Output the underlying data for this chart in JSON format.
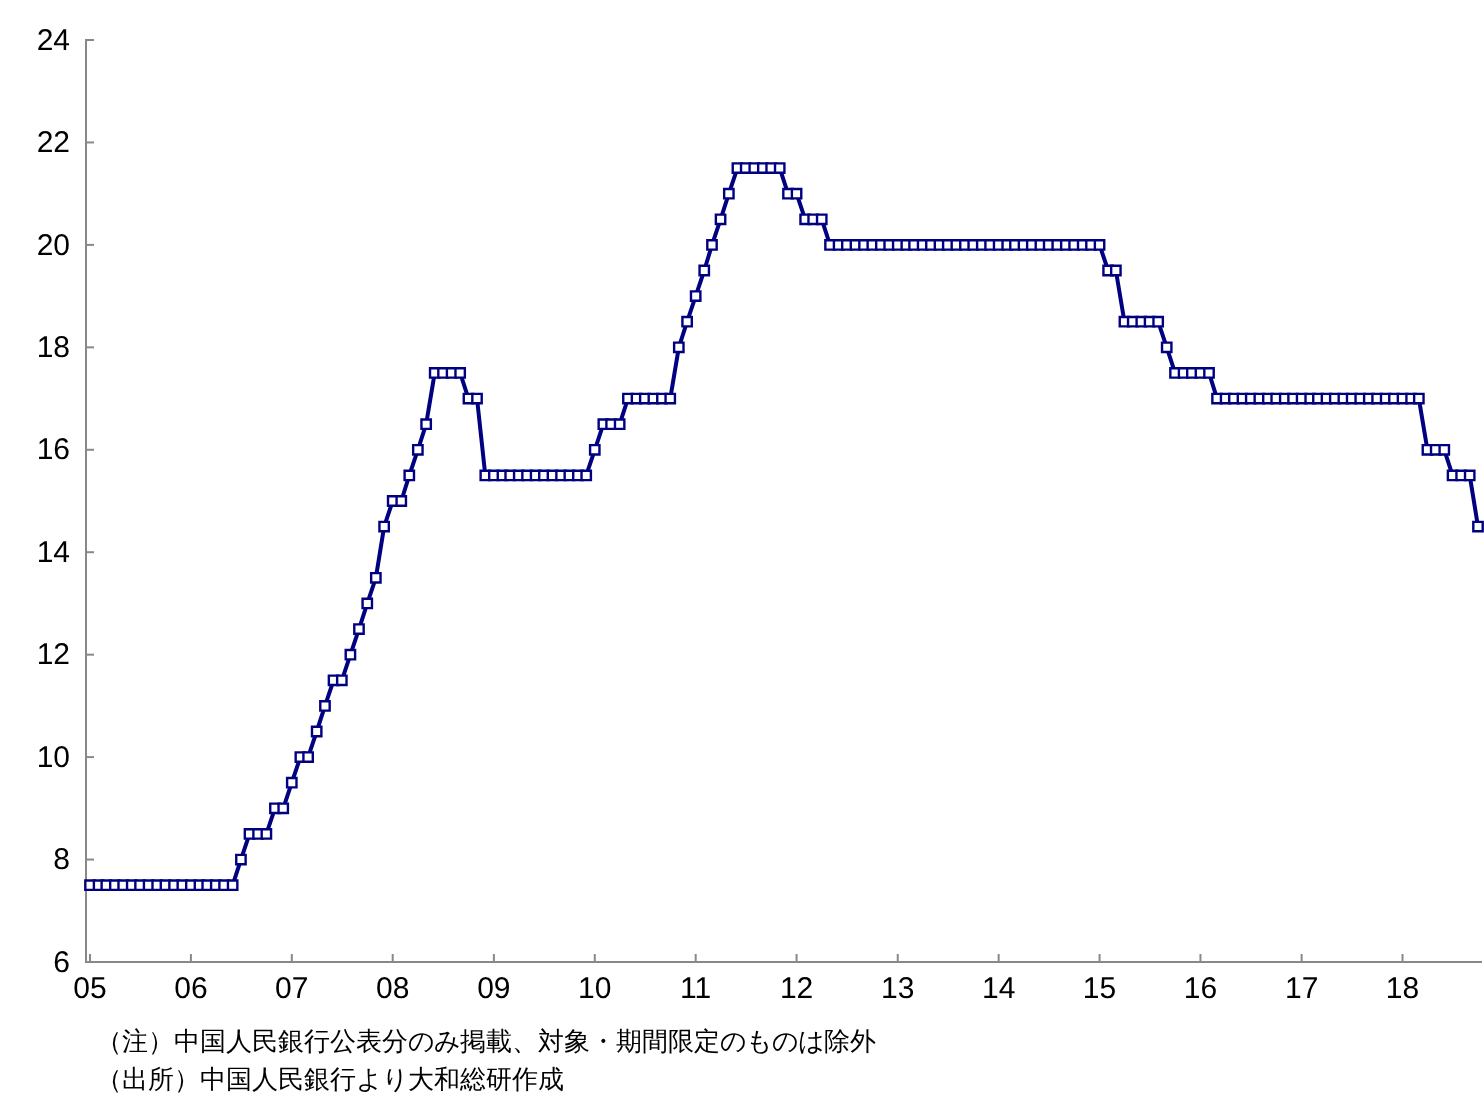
{
  "chart_data": {
    "type": "line",
    "marker": "square",
    "line_style": "solid",
    "grid": false,
    "x": [
      "2005-01",
      "2005-02",
      "2005-03",
      "2005-04",
      "2005-05",
      "2005-06",
      "2005-07",
      "2005-08",
      "2005-09",
      "2005-10",
      "2005-11",
      "2005-12",
      "2006-01",
      "2006-02",
      "2006-03",
      "2006-04",
      "2006-05",
      "2006-06",
      "2006-07",
      "2006-08",
      "2006-09",
      "2006-10",
      "2006-11",
      "2006-12",
      "2007-01",
      "2007-02",
      "2007-03",
      "2007-04",
      "2007-05",
      "2007-06",
      "2007-07",
      "2007-08",
      "2007-09",
      "2007-10",
      "2007-11",
      "2007-12",
      "2008-01",
      "2008-02",
      "2008-03",
      "2008-04",
      "2008-05",
      "2008-06",
      "2008-07",
      "2008-08",
      "2008-09",
      "2008-10",
      "2008-11",
      "2008-12",
      "2009-01",
      "2009-02",
      "2009-03",
      "2009-04",
      "2009-05",
      "2009-06",
      "2009-07",
      "2009-08",
      "2009-09",
      "2009-10",
      "2009-11",
      "2009-12",
      "2010-01",
      "2010-02",
      "2010-03",
      "2010-04",
      "2010-05",
      "2010-06",
      "2010-07",
      "2010-08",
      "2010-09",
      "2010-10",
      "2010-11",
      "2010-12",
      "2011-01",
      "2011-02",
      "2011-03",
      "2011-04",
      "2011-05",
      "2011-06",
      "2011-07",
      "2011-08",
      "2011-09",
      "2011-10",
      "2011-11",
      "2011-12",
      "2012-01",
      "2012-02",
      "2012-03",
      "2012-04",
      "2012-05",
      "2012-06",
      "2012-07",
      "2012-08",
      "2012-09",
      "2012-10",
      "2012-11",
      "2012-12",
      "2013-01",
      "2013-02",
      "2013-03",
      "2013-04",
      "2013-05",
      "2013-06",
      "2013-07",
      "2013-08",
      "2013-09",
      "2013-10",
      "2013-11",
      "2013-12",
      "2014-01",
      "2014-02",
      "2014-03",
      "2014-04",
      "2014-05",
      "2014-06",
      "2014-07",
      "2014-08",
      "2014-09",
      "2014-10",
      "2014-11",
      "2014-12",
      "2015-01",
      "2015-02",
      "2015-03",
      "2015-04",
      "2015-05",
      "2015-06",
      "2015-07",
      "2015-08",
      "2015-09",
      "2015-10",
      "2015-11",
      "2015-12",
      "2016-01",
      "2016-02",
      "2016-03",
      "2016-04",
      "2016-05",
      "2016-06",
      "2016-07",
      "2016-08",
      "2016-09",
      "2016-10",
      "2016-11",
      "2016-12",
      "2017-01",
      "2017-02",
      "2017-03",
      "2017-04",
      "2017-05",
      "2017-06",
      "2017-07",
      "2017-08",
      "2017-09",
      "2017-10",
      "2017-11",
      "2017-12",
      "2018-01",
      "2018-02",
      "2018-03",
      "2018-04",
      "2018-05",
      "2018-06",
      "2018-07",
      "2018-08",
      "2018-09",
      "2018-10"
    ],
    "series": [
      {
        "color": "#000080",
        "values": [
          7.5,
          7.5,
          7.5,
          7.5,
          7.5,
          7.5,
          7.5,
          7.5,
          7.5,
          7.5,
          7.5,
          7.5,
          7.5,
          7.5,
          7.5,
          7.5,
          7.5,
          7.5,
          8,
          8.5,
          8.5,
          8.5,
          9,
          9,
          9.5,
          10,
          10,
          10.5,
          11,
          11.5,
          11.5,
          12,
          12.5,
          13,
          13.5,
          14.5,
          15,
          15,
          15.5,
          16,
          16.5,
          17.5,
          17.5,
          17.5,
          17.5,
          17,
          17,
          15.5,
          15.5,
          15.5,
          15.5,
          15.5,
          15.5,
          15.5,
          15.5,
          15.5,
          15.5,
          15.5,
          15.5,
          15.5,
          16,
          16.5,
          16.5,
          16.5,
          17,
          17,
          17,
          17,
          17,
          17,
          18,
          18.5,
          19,
          19.5,
          20,
          20.5,
          21,
          21.5,
          21.5,
          21.5,
          21.5,
          21.5,
          21.5,
          21,
          21,
          20.5,
          20.5,
          20.5,
          20,
          20,
          20,
          20,
          20,
          20,
          20,
          20,
          20,
          20,
          20,
          20,
          20,
          20,
          20,
          20,
          20,
          20,
          20,
          20,
          20,
          20,
          20,
          20,
          20,
          20,
          20,
          20,
          20,
          20,
          20,
          20,
          20,
          19.5,
          19.5,
          18.5,
          18.5,
          18.5,
          18.5,
          18.5,
          18,
          17.5,
          17.5,
          17.5,
          17.5,
          17.5,
          17,
          17,
          17,
          17,
          17,
          17,
          17,
          17,
          17,
          17,
          17,
          17,
          17,
          17,
          17,
          17,
          17,
          17,
          17,
          17,
          17,
          17,
          17,
          17,
          17,
          16,
          16,
          16,
          15.5,
          15.5,
          15.5,
          14.5
        ]
      }
    ],
    "xlim": [
      "2005-01",
      "2018-10"
    ],
    "xticks": [
      {
        "value": "2005",
        "label": "05"
      },
      {
        "value": "2006",
        "label": "06"
      },
      {
        "value": "2007",
        "label": "07"
      },
      {
        "value": "2008",
        "label": "08"
      },
      {
        "value": "2009",
        "label": "09"
      },
      {
        "value": "2010",
        "label": "10"
      },
      {
        "value": "2011",
        "label": "11"
      },
      {
        "value": "2012",
        "label": "12"
      },
      {
        "value": "2013",
        "label": "13"
      },
      {
        "value": "2014",
        "label": "14"
      },
      {
        "value": "2015",
        "label": "15"
      },
      {
        "value": "2016",
        "label": "16"
      },
      {
        "value": "2017",
        "label": "17"
      },
      {
        "value": "2018",
        "label": "18"
      }
    ],
    "ylim": [
      6,
      24
    ],
    "yticks": [
      6,
      8,
      10,
      12,
      14,
      16,
      18,
      20,
      22,
      24
    ],
    "annotations": [
      "（注）中国人民銀行公表分のみ掲載、対象・期間限定のものは除外",
      "（出所）中国人民銀行より大和総研作成"
    ]
  }
}
